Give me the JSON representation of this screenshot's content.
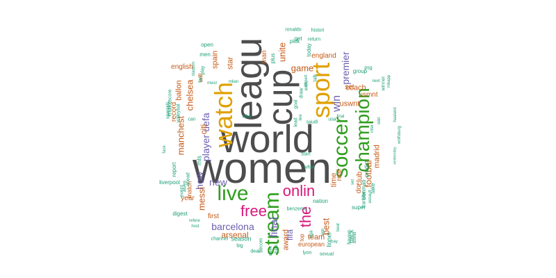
{
  "palette": {
    "gray": "#4d4d4d",
    "green": "#2f9e1e",
    "orange": "#e0a000",
    "purple": "#6a5fb0",
    "magenta": "#d6197c",
    "brown": "#c45a16",
    "teal": "#1b9e77"
  },
  "words": [
    {
      "text": "women",
      "color": "gray"
    },
    {
      "text": "world",
      "color": "gray"
    },
    {
      "text": "leagu",
      "color": "gray"
    },
    {
      "text": "cup",
      "color": "gray"
    },
    {
      "text": "sport",
      "color": "orange"
    },
    {
      "text": "watch",
      "color": "orange"
    },
    {
      "text": "soccer",
      "color": "green"
    },
    {
      "text": "champion",
      "color": "green"
    },
    {
      "text": "stream",
      "color": "green"
    },
    {
      "text": "live",
      "color": "green"
    },
    {
      "text": "onlin",
      "color": "magenta"
    },
    {
      "text": "free",
      "color": "magenta"
    },
    {
      "text": "the",
      "color": "magenta"
    },
    {
      "text": "win",
      "color": "purple"
    },
    {
      "text": "final",
      "color": "purple"
    },
    {
      "text": "player",
      "color": "purple"
    },
    {
      "text": "uefa",
      "color": "purple"
    },
    {
      "text": "barcelona",
      "color": "purple"
    },
    {
      "text": "new",
      "color": "purple"
    },
    {
      "text": "fifa",
      "color": "purple"
    },
    {
      "text": "how",
      "color": "purple"
    },
    {
      "text": "premier",
      "color": "purple"
    },
    {
      "text": "best",
      "color": "brown"
    },
    {
      "text": "messi",
      "color": "brown"
    },
    {
      "text": "manchest",
      "color": "brown"
    },
    {
      "text": "chelsea",
      "color": "brown"
    },
    {
      "text": "game",
      "color": "brown"
    },
    {
      "text": "unite",
      "color": "brown"
    },
    {
      "text": "citi",
      "color": "brown"
    },
    {
      "text": "footbal",
      "color": "brown"
    },
    {
      "text": "madrid",
      "color": "brown"
    },
    {
      "text": "arsenal",
      "color": "brown"
    },
    {
      "text": "award",
      "color": "brown"
    },
    {
      "text": "team",
      "color": "brown"
    },
    {
      "text": "coach",
      "color": "brown"
    },
    {
      "text": "time",
      "color": "brown"
    },
    {
      "text": "uswnt",
      "color": "brown"
    },
    {
      "text": "club",
      "color": "brown"
    },
    {
      "text": "star",
      "color": "brown"
    },
    {
      "text": "spain",
      "color": "brown"
    },
    {
      "text": "ballon",
      "color": "brown"
    },
    {
      "text": "english",
      "color": "brown"
    },
    {
      "text": "real",
      "color": "brown"
    },
    {
      "text": "usmnt",
      "color": "brown"
    },
    {
      "text": "england",
      "color": "brown"
    },
    {
      "text": "man",
      "color": "brown"
    },
    {
      "text": "set",
      "color": "brown"
    },
    {
      "text": "dor",
      "color": "brown"
    },
    {
      "text": "year",
      "color": "brown"
    },
    {
      "text": "first",
      "color": "brown"
    },
    {
      "text": "record",
      "color": "brown"
    },
    {
      "text": "make",
      "color": "teal"
    },
    {
      "text": "match",
      "color": "brown"
    },
    {
      "text": "will",
      "color": "brown"
    },
    {
      "text": "european",
      "color": "brown"
    },
    {
      "text": "season",
      "color": "teal"
    },
    {
      "text": "lionel",
      "color": "teal"
    },
    {
      "text": "back",
      "color": "teal"
    },
    {
      "text": "top",
      "color": "brown"
    },
    {
      "text": "mls",
      "color": "teal"
    },
    {
      "text": "report",
      "color": "teal"
    },
    {
      "text": "liverpool",
      "color": "teal"
    },
    {
      "text": "digest",
      "color": "teal"
    },
    {
      "text": "group",
      "color": "teal"
    },
    {
      "text": "nation",
      "color": "teal"
    },
    {
      "text": "super",
      "color": "teal"
    },
    {
      "text": "take",
      "color": "teal"
    },
    {
      "text": "predict",
      "color": "teal"
    },
    {
      "text": "bonmati",
      "color": "teal"
    },
    {
      "text": "pick",
      "color": "teal"
    },
    {
      "text": "get",
      "color": "teal"
    },
    {
      "text": "today",
      "color": "teal"
    },
    {
      "text": "plus",
      "color": "teal"
    },
    {
      "text": "open",
      "color": "teal"
    },
    {
      "text": "men",
      "color": "teal"
    },
    {
      "text": "ronaldo",
      "color": "teal"
    },
    {
      "text": "return",
      "color": "teal"
    },
    {
      "text": "histori",
      "color": "teal"
    },
    {
      "text": "psg",
      "color": "teal"
    },
    {
      "text": "winner",
      "color": "teal"
    },
    {
      "text": "mbapp",
      "color": "teal"
    },
    {
      "text": "haaland",
      "color": "teal"
    },
    {
      "text": "wolfsburg",
      "color": "teal"
    },
    {
      "text": "wednesday",
      "color": "teal"
    },
    {
      "text": "next",
      "color": "teal"
    },
    {
      "text": "odd",
      "color": "teal"
    },
    {
      "text": "inter",
      "color": "teal"
    },
    {
      "text": "milan",
      "color": "teal"
    },
    {
      "text": "mwsl",
      "color": "teal"
    },
    {
      "text": "who",
      "color": "teal"
    },
    {
      "text": "can",
      "color": "teal"
    },
    {
      "text": "saudi",
      "color": "teal"
    },
    {
      "text": "line",
      "color": "teal"
    },
    {
      "text": "usa",
      "color": "teal"
    },
    {
      "text": "spanish",
      "color": "teal"
    },
    {
      "text": "volleybal",
      "color": "teal"
    },
    {
      "text": "ahead",
      "color": "teal"
    },
    {
      "text": "alves",
      "color": "teal"
    },
    {
      "text": "event",
      "color": "teal"
    },
    {
      "text": "host",
      "color": "teal"
    },
    {
      "text": "refere",
      "color": "teal"
    },
    {
      "text": "channel",
      "color": "teal"
    },
    {
      "text": "big",
      "color": "teal"
    },
    {
      "text": "lyon",
      "color": "teal"
    },
    {
      "text": "sexual",
      "color": "teal"
    },
    {
      "text": "benzema",
      "color": "teal"
    },
    {
      "text": "bayern",
      "color": "teal"
    },
    {
      "text": "attend",
      "color": "teal"
    },
    {
      "text": "hay",
      "color": "teal"
    },
    {
      "text": "transfer",
      "color": "teal"
    },
    {
      "text": "assault",
      "color": "teal"
    },
    {
      "text": "set",
      "color": "teal"
    },
    {
      "text": "stadium",
      "color": "teal"
    },
    {
      "text": "score",
      "color": "teal"
    },
    {
      "text": "face",
      "color": "teal"
    },
    {
      "text": "start",
      "color": "teal"
    },
    {
      "text": "what",
      "color": "teal"
    },
    {
      "text": "talk",
      "color": "teal"
    },
    {
      "text": "expert",
      "color": "teal"
    },
    {
      "text": "lead",
      "color": "teal"
    },
    {
      "text": "goal",
      "color": "teal"
    },
    {
      "text": "draw",
      "color": "teal"
    },
    {
      "text": "with",
      "color": "teal"
    },
    {
      "text": "play",
      "color": "teal"
    },
    {
      "text": "fan",
      "color": "teal"
    },
    {
      "text": "final",
      "color": "teal"
    },
    {
      "text": "deal",
      "color": "teal"
    },
    {
      "text": "becom",
      "color": "teal"
    },
    {
      "text": "week",
      "color": "teal"
    },
    {
      "text": "franc",
      "color": "teal"
    },
    {
      "text": "beat",
      "color": "teal"
    },
    {
      "text": "sign",
      "color": "teal"
    },
    {
      "text": "liga",
      "color": "teal"
    }
  ]
}
